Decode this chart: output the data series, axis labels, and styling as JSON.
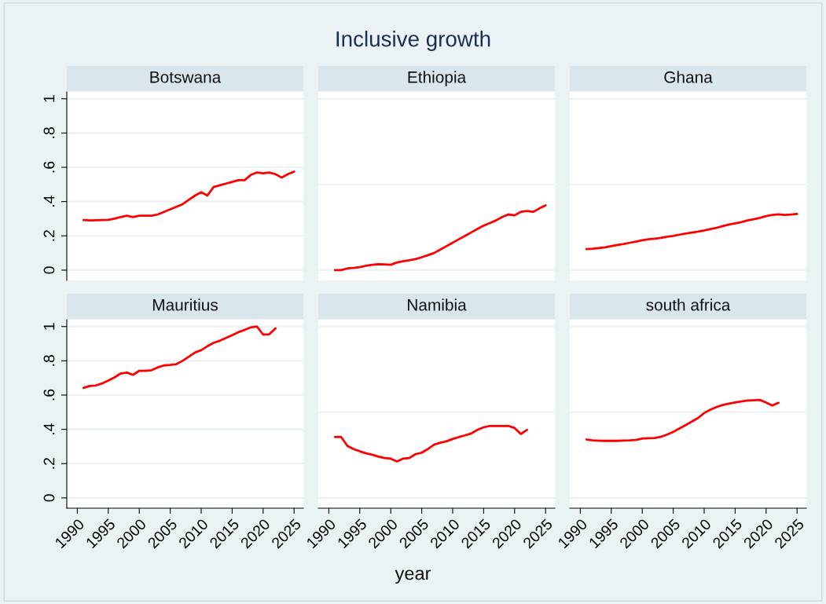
{
  "chart_data": [
    {
      "type": "line",
      "title": "Botswana",
      "annotations": [
        "Inclusive growth",
        "year"
      ],
      "x": [
        1991,
        1992,
        1993,
        1994,
        1995,
        1996,
        1997,
        1998,
        1999,
        2000,
        2001,
        2002,
        2003,
        2004,
        2005,
        2006,
        2007,
        2008,
        2009,
        2010,
        2011,
        2012,
        2013,
        2014,
        2015,
        2016,
        2017,
        2018,
        2019,
        2020,
        2021,
        2022,
        2023,
        2024,
        2025
      ],
      "series": [
        {
          "color": "#ff0000",
          "values": [
            0.292,
            0.29,
            0.291,
            0.292,
            0.293,
            0.3,
            0.31,
            0.318,
            0.31,
            0.318,
            0.318,
            0.318,
            0.325,
            0.34,
            0.355,
            0.37,
            0.385,
            0.41,
            0.435,
            0.455,
            0.435,
            0.485,
            0.495,
            0.505,
            0.515,
            0.525,
            0.525,
            0.555,
            0.57,
            0.565,
            0.57,
            0.56,
            0.54,
            0.56,
            0.575
          ]
        }
      ],
      "xlim": [
        1988.3,
        2026.5
      ],
      "ylim": [
        -0.06,
        1.04
      ],
      "xticks": [
        1990,
        1995,
        2000,
        2005,
        2010,
        2015,
        2020,
        2025
      ],
      "yticks": [
        {
          "value": 0,
          "label": "0"
        },
        {
          "value": 0.2,
          "label": ".2"
        },
        {
          "value": 0.4,
          "label": ".4"
        },
        {
          "value": 0.6,
          "label": ".6"
        },
        {
          "value": 0.8,
          "label": ".8"
        },
        {
          "value": 1,
          "label": "1"
        }
      ],
      "grid": "y",
      "tick_labels": "y"
    },
    {
      "type": "line",
      "title": "Ethiopia",
      "x": [
        1991,
        1992,
        1993,
        1994,
        1995,
        1996,
        1997,
        1998,
        1999,
        2000,
        2001,
        2002,
        2003,
        2004,
        2005,
        2006,
        2007,
        2008,
        2009,
        2010,
        2011,
        2012,
        2013,
        2014,
        2015,
        2016,
        2017,
        2018,
        2019,
        2020,
        2021,
        2022,
        2023,
        2024,
        2025
      ],
      "series": [
        {
          "color": "#ff0000",
          "values": [
            0.0,
            0.0,
            0.01,
            0.013,
            0.017,
            0.025,
            0.031,
            0.034,
            0.033,
            0.031,
            0.045,
            0.052,
            0.057,
            0.064,
            0.075,
            0.087,
            0.1,
            0.12,
            0.14,
            0.16,
            0.18,
            0.2,
            0.22,
            0.24,
            0.26,
            0.275,
            0.29,
            0.31,
            0.325,
            0.32,
            0.34,
            0.345,
            0.34,
            0.36,
            0.378
          ]
        }
      ],
      "xlim": [
        1988.3,
        2026.5
      ],
      "ylim": [
        -0.06,
        1.04
      ],
      "xticks": [
        1990,
        1995,
        2000,
        2005,
        2010,
        2015,
        2020,
        2025
      ],
      "yticks": [
        0,
        0.5,
        1
      ],
      "grid": "y",
      "tick_labels": false
    },
    {
      "type": "line",
      "title": "Ghana",
      "x": [
        1991,
        1992,
        1993,
        1994,
        1995,
        1996,
        1997,
        1998,
        1999,
        2000,
        2001,
        2002,
        2003,
        2004,
        2005,
        2006,
        2007,
        2008,
        2009,
        2010,
        2011,
        2012,
        2013,
        2014,
        2015,
        2016,
        2017,
        2018,
        2019,
        2020,
        2021,
        2022,
        2023,
        2024,
        2025
      ],
      "series": [
        {
          "color": "#ff0000",
          "values": [
            0.123,
            0.125,
            0.129,
            0.133,
            0.14,
            0.147,
            0.153,
            0.16,
            0.166,
            0.174,
            0.18,
            0.183,
            0.188,
            0.195,
            0.2,
            0.207,
            0.213,
            0.219,
            0.225,
            0.232,
            0.24,
            0.247,
            0.257,
            0.266,
            0.273,
            0.28,
            0.29,
            0.297,
            0.305,
            0.315,
            0.322,
            0.326,
            0.322,
            0.324,
            0.328
          ]
        }
      ],
      "xlim": [
        1988.3,
        2026.5
      ],
      "ylim": [
        -0.06,
        1.04
      ],
      "xticks": [
        1990,
        1995,
        2000,
        2005,
        2010,
        2015,
        2020,
        2025
      ],
      "yticks": [
        0,
        0.5,
        1
      ],
      "grid": "y",
      "tick_labels": false
    },
    {
      "type": "line",
      "title": "Mauritius",
      "x": [
        1991,
        1992,
        1993,
        1994,
        1995,
        1996,
        1997,
        1998,
        1999,
        2000,
        2001,
        2002,
        2003,
        2004,
        2005,
        2006,
        2007,
        2008,
        2009,
        2010,
        2011,
        2012,
        2013,
        2014,
        2015,
        2016,
        2017,
        2018,
        2019,
        2020,
        2021,
        2022
      ],
      "series": [
        {
          "color": "#ff0000",
          "values": [
            0.642,
            0.653,
            0.656,
            0.668,
            0.685,
            0.703,
            0.726,
            0.731,
            0.718,
            0.742,
            0.742,
            0.745,
            0.762,
            0.773,
            0.776,
            0.781,
            0.8,
            0.824,
            0.848,
            0.862,
            0.885,
            0.905,
            0.917,
            0.933,
            0.95,
            0.967,
            0.98,
            0.995,
            1.0,
            0.953,
            0.955,
            0.99
          ]
        }
      ],
      "xlim": [
        1988.3,
        2026.5
      ],
      "ylim": [
        -0.06,
        1.04
      ],
      "xticks": [
        1990,
        1995,
        2000,
        2005,
        2010,
        2015,
        2020,
        2025
      ],
      "yticks": [
        {
          "value": 0,
          "label": "0"
        },
        {
          "value": 0.2,
          "label": ".2"
        },
        {
          "value": 0.4,
          "label": ".4"
        },
        {
          "value": 0.6,
          "label": ".6"
        },
        {
          "value": 0.8,
          "label": ".8"
        },
        {
          "value": 1,
          "label": "1"
        }
      ],
      "grid": "y"
    },
    {
      "type": "line",
      "title": "Namibia",
      "x": [
        1991,
        1992,
        1993,
        1994,
        1995,
        1996,
        1997,
        1998,
        1999,
        2000,
        2001,
        2002,
        2003,
        2004,
        2005,
        2006,
        2007,
        2008,
        2009,
        2010,
        2011,
        2012,
        2013,
        2014,
        2015,
        2016,
        2017,
        2018,
        2019,
        2020,
        2021,
        2022
      ],
      "series": [
        {
          "color": "#ff0000",
          "values": [
            0.355,
            0.355,
            0.303,
            0.285,
            0.272,
            0.26,
            0.252,
            0.241,
            0.233,
            0.229,
            0.213,
            0.229,
            0.233,
            0.255,
            0.264,
            0.285,
            0.311,
            0.322,
            0.33,
            0.344,
            0.355,
            0.365,
            0.376,
            0.397,
            0.412,
            0.42,
            0.42,
            0.42,
            0.42,
            0.408,
            0.373,
            0.397
          ]
        }
      ],
      "xlim": [
        1988.3,
        2026.5
      ],
      "ylim": [
        -0.06,
        1.04
      ],
      "xticks": [
        1990,
        1995,
        2000,
        2005,
        2010,
        2015,
        2020,
        2025
      ],
      "yticks": [
        0,
        0.5,
        1
      ],
      "grid": "y",
      "tick_labels": "x"
    },
    {
      "type": "line",
      "title": "south africa",
      "x": [
        1991,
        1992,
        1993,
        1994,
        1995,
        1996,
        1997,
        1998,
        1999,
        2000,
        2001,
        2002,
        2003,
        2004,
        2005,
        2006,
        2007,
        2008,
        2009,
        2010,
        2011,
        2012,
        2013,
        2014,
        2015,
        2016,
        2017,
        2018,
        2019,
        2020,
        2021,
        2022
      ],
      "series": [
        {
          "color": "#ff0000",
          "values": [
            0.341,
            0.336,
            0.334,
            0.333,
            0.333,
            0.333,
            0.335,
            0.336,
            0.338,
            0.346,
            0.348,
            0.35,
            0.356,
            0.37,
            0.385,
            0.405,
            0.425,
            0.445,
            0.466,
            0.495,
            0.515,
            0.53,
            0.542,
            0.55,
            0.557,
            0.563,
            0.568,
            0.57,
            0.572,
            0.556,
            0.539,
            0.555
          ]
        }
      ],
      "xlim": [
        1988.3,
        2026.5
      ],
      "ylim": [
        -0.06,
        1.04
      ],
      "xticks": [
        1990,
        1995,
        2000,
        2005,
        2010,
        2015,
        2020,
        2025
      ],
      "yticks": [
        0,
        0.5,
        1
      ],
      "grid": "y",
      "tick_labels": "x"
    }
  ]
}
